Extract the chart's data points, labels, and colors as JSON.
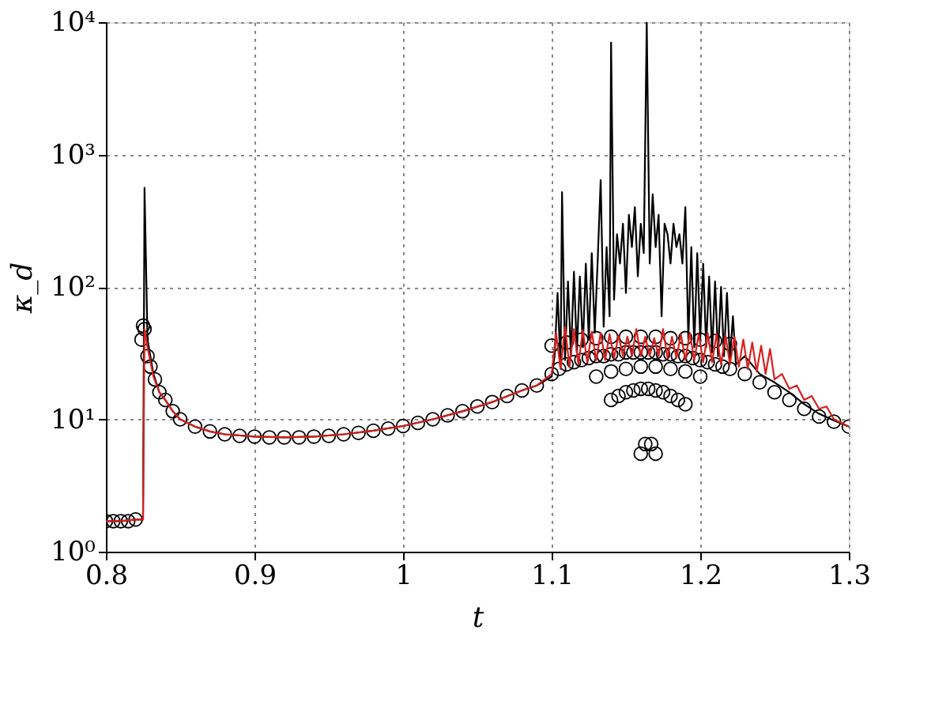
{
  "chart_data": {
    "type": "line",
    "xlabel": "t",
    "ylabel": "κ_d",
    "log": "y",
    "grid": true,
    "xlim": [
      0.8,
      1.3
    ],
    "xticks": [
      0.8,
      0.9,
      1,
      1.1,
      1.2,
      1.3
    ],
    "ylim": [
      1,
      10000
    ],
    "yticks": [
      {
        "value": 1,
        "label": "10⁰"
      },
      {
        "value": 10,
        "label": "10¹"
      },
      {
        "value": 100,
        "label": "10²"
      },
      {
        "value": 1000,
        "label": "10³"
      },
      {
        "value": 10000,
        "label": "10⁴"
      }
    ],
    "series": [
      {
        "color": "#000000",
        "x": [
          0.8,
          0.81,
          0.82,
          0.825,
          0.826,
          0.828,
          0.832,
          0.836,
          0.84,
          0.845,
          0.85,
          0.86,
          0.87,
          0.88,
          0.9,
          0.92,
          0.94,
          0.96,
          0.98,
          1.0,
          1.02,
          1.04,
          1.06,
          1.08,
          1.09,
          1.1,
          1.102,
          1.104,
          1.106,
          1.107,
          1.109,
          1.111,
          1.113,
          1.115,
          1.117,
          1.119,
          1.121,
          1.123,
          1.125,
          1.127,
          1.129,
          1.131,
          1.133,
          1.135,
          1.137,
          1.139,
          1.14,
          1.142,
          1.144,
          1.146,
          1.148,
          1.15,
          1.152,
          1.154,
          1.156,
          1.158,
          1.16,
          1.162,
          1.164,
          1.166,
          1.168,
          1.17,
          1.172,
          1.174,
          1.176,
          1.178,
          1.18,
          1.182,
          1.184,
          1.186,
          1.188,
          1.19,
          1.192,
          1.194,
          1.196,
          1.198,
          1.2,
          1.202,
          1.204,
          1.206,
          1.208,
          1.21,
          1.212,
          1.214,
          1.216,
          1.218,
          1.22,
          1.222,
          1.224,
          1.23,
          1.24,
          1.25,
          1.26,
          1.27,
          1.28,
          1.29,
          1.3
        ],
        "values": [
          1.7,
          1.7,
          1.75,
          1.75,
          560,
          40,
          22,
          16,
          14,
          11.5,
          10,
          8.8,
          8.1,
          7.7,
          7.4,
          7.3,
          7.4,
          7.7,
          8.2,
          8.9,
          10,
          11.5,
          13.5,
          16.5,
          18,
          21,
          30,
          90,
          25,
          520,
          28,
          110,
          30,
          130,
          32,
          120,
          35,
          150,
          40,
          180,
          45,
          160,
          640,
          50,
          200,
          60,
          7000,
          80,
          250,
          150,
          300,
          90,
          350,
          200,
          400,
          120,
          300,
          180,
          10000,
          150,
          500,
          200,
          350,
          60,
          300,
          250,
          150,
          300,
          200,
          250,
          150,
          400,
          40,
          200,
          35,
          180,
          40,
          150,
          35,
          120,
          32,
          110,
          30,
          100,
          30,
          90,
          28,
          60,
          26,
          30,
          22,
          19,
          16,
          13,
          11,
          9.8,
          8.8
        ]
      },
      {
        "type": "scatter",
        "marker": "circle",
        "color": "#000000",
        "x": [
          0.8,
          0.805,
          0.81,
          0.815,
          0.82,
          0.824,
          0.825,
          0.826,
          0.828,
          0.83,
          0.833,
          0.836,
          0.84,
          0.845,
          0.85,
          0.86,
          0.87,
          0.88,
          0.89,
          0.9,
          0.91,
          0.92,
          0.93,
          0.94,
          0.95,
          0.96,
          0.97,
          0.98,
          0.99,
          1.0,
          1.01,
          1.02,
          1.03,
          1.04,
          1.05,
          1.06,
          1.07,
          1.08,
          1.09,
          1.1,
          1.105,
          1.11,
          1.115,
          1.12,
          1.125,
          1.13,
          1.135,
          1.14,
          1.145,
          1.15,
          1.155,
          1.16,
          1.165,
          1.17,
          1.175,
          1.18,
          1.185,
          1.19,
          1.195,
          1.2,
          1.205,
          1.21,
          1.215,
          1.22,
          1.1,
          1.11,
          1.12,
          1.13,
          1.14,
          1.15,
          1.16,
          1.17,
          1.18,
          1.19,
          1.2,
          1.21,
          1.22,
          1.13,
          1.14,
          1.15,
          1.16,
          1.17,
          1.18,
          1.19,
          1.2,
          1.14,
          1.145,
          1.15,
          1.155,
          1.16,
          1.165,
          1.17,
          1.175,
          1.18,
          1.185,
          1.19,
          1.16,
          1.163,
          1.167,
          1.17,
          1.23,
          1.24,
          1.25,
          1.26,
          1.27,
          1.28,
          1.29,
          1.3
        ],
        "values": [
          1.7,
          1.7,
          1.7,
          1.7,
          1.75,
          40,
          51,
          48,
          30,
          25,
          20,
          16,
          14,
          11.5,
          10,
          8.8,
          8.1,
          7.7,
          7.5,
          7.4,
          7.3,
          7.3,
          7.3,
          7.4,
          7.5,
          7.7,
          7.9,
          8.2,
          8.5,
          8.9,
          9.4,
          10,
          10.7,
          11.5,
          12.5,
          13.5,
          15,
          16.5,
          18,
          22,
          24,
          26,
          27,
          28,
          29,
          30,
          30,
          31,
          31,
          32,
          32,
          32,
          32,
          32,
          31,
          31,
          30,
          30,
          29,
          28,
          27,
          26,
          25,
          24,
          36,
          38,
          40,
          41,
          42,
          42,
          42,
          42,
          41,
          41,
          40,
          39,
          37,
          21,
          23,
          24,
          25,
          25,
          24,
          23,
          21,
          14,
          15,
          16,
          16.5,
          17,
          17,
          16.5,
          16,
          15,
          14,
          13,
          5.5,
          6.5,
          6.5,
          5.5,
          22,
          19,
          16,
          14,
          12,
          10.5,
          9.6,
          8.8
        ]
      },
      {
        "color": "#d9201e",
        "x": [
          0.8,
          0.81,
          0.82,
          0.825,
          0.826,
          0.828,
          0.832,
          0.836,
          0.84,
          0.845,
          0.85,
          0.86,
          0.87,
          0.88,
          0.9,
          0.92,
          0.94,
          0.96,
          0.98,
          1.0,
          1.02,
          1.04,
          1.06,
          1.08,
          1.09,
          1.1,
          1.103,
          1.106,
          1.109,
          1.112,
          1.115,
          1.118,
          1.121,
          1.124,
          1.127,
          1.13,
          1.133,
          1.136,
          1.139,
          1.142,
          1.145,
          1.148,
          1.151,
          1.154,
          1.157,
          1.16,
          1.163,
          1.166,
          1.169,
          1.172,
          1.175,
          1.178,
          1.181,
          1.184,
          1.187,
          1.19,
          1.193,
          1.196,
          1.199,
          1.202,
          1.205,
          1.208,
          1.211,
          1.214,
          1.217,
          1.22,
          1.223,
          1.226,
          1.229,
          1.232,
          1.235,
          1.238,
          1.241,
          1.244,
          1.247,
          1.25,
          1.255,
          1.26,
          1.265,
          1.27,
          1.275,
          1.28,
          1.285,
          1.29,
          1.3
        ],
        "values": [
          1.7,
          1.7,
          1.75,
          1.75,
          48,
          35,
          21,
          16,
          14,
          11.5,
          10,
          8.8,
          8.1,
          7.7,
          7.4,
          7.3,
          7.4,
          7.7,
          8.2,
          8.9,
          10,
          11.5,
          13.5,
          16.5,
          18,
          22,
          45,
          24,
          50,
          25,
          48,
          26,
          47,
          27,
          46,
          28,
          45,
          28,
          44,
          29,
          43,
          30,
          42,
          30,
          48,
          30,
          42,
          30,
          41,
          30,
          48,
          29,
          42,
          29,
          44,
          28,
          45,
          28,
          44,
          27,
          45,
          27,
          44,
          26,
          43,
          26,
          42,
          25,
          40,
          24,
          38,
          23,
          36,
          22,
          34,
          20,
          22,
          17,
          18,
          14,
          15,
          12,
          12.5,
          10,
          8.8
        ]
      }
    ]
  }
}
